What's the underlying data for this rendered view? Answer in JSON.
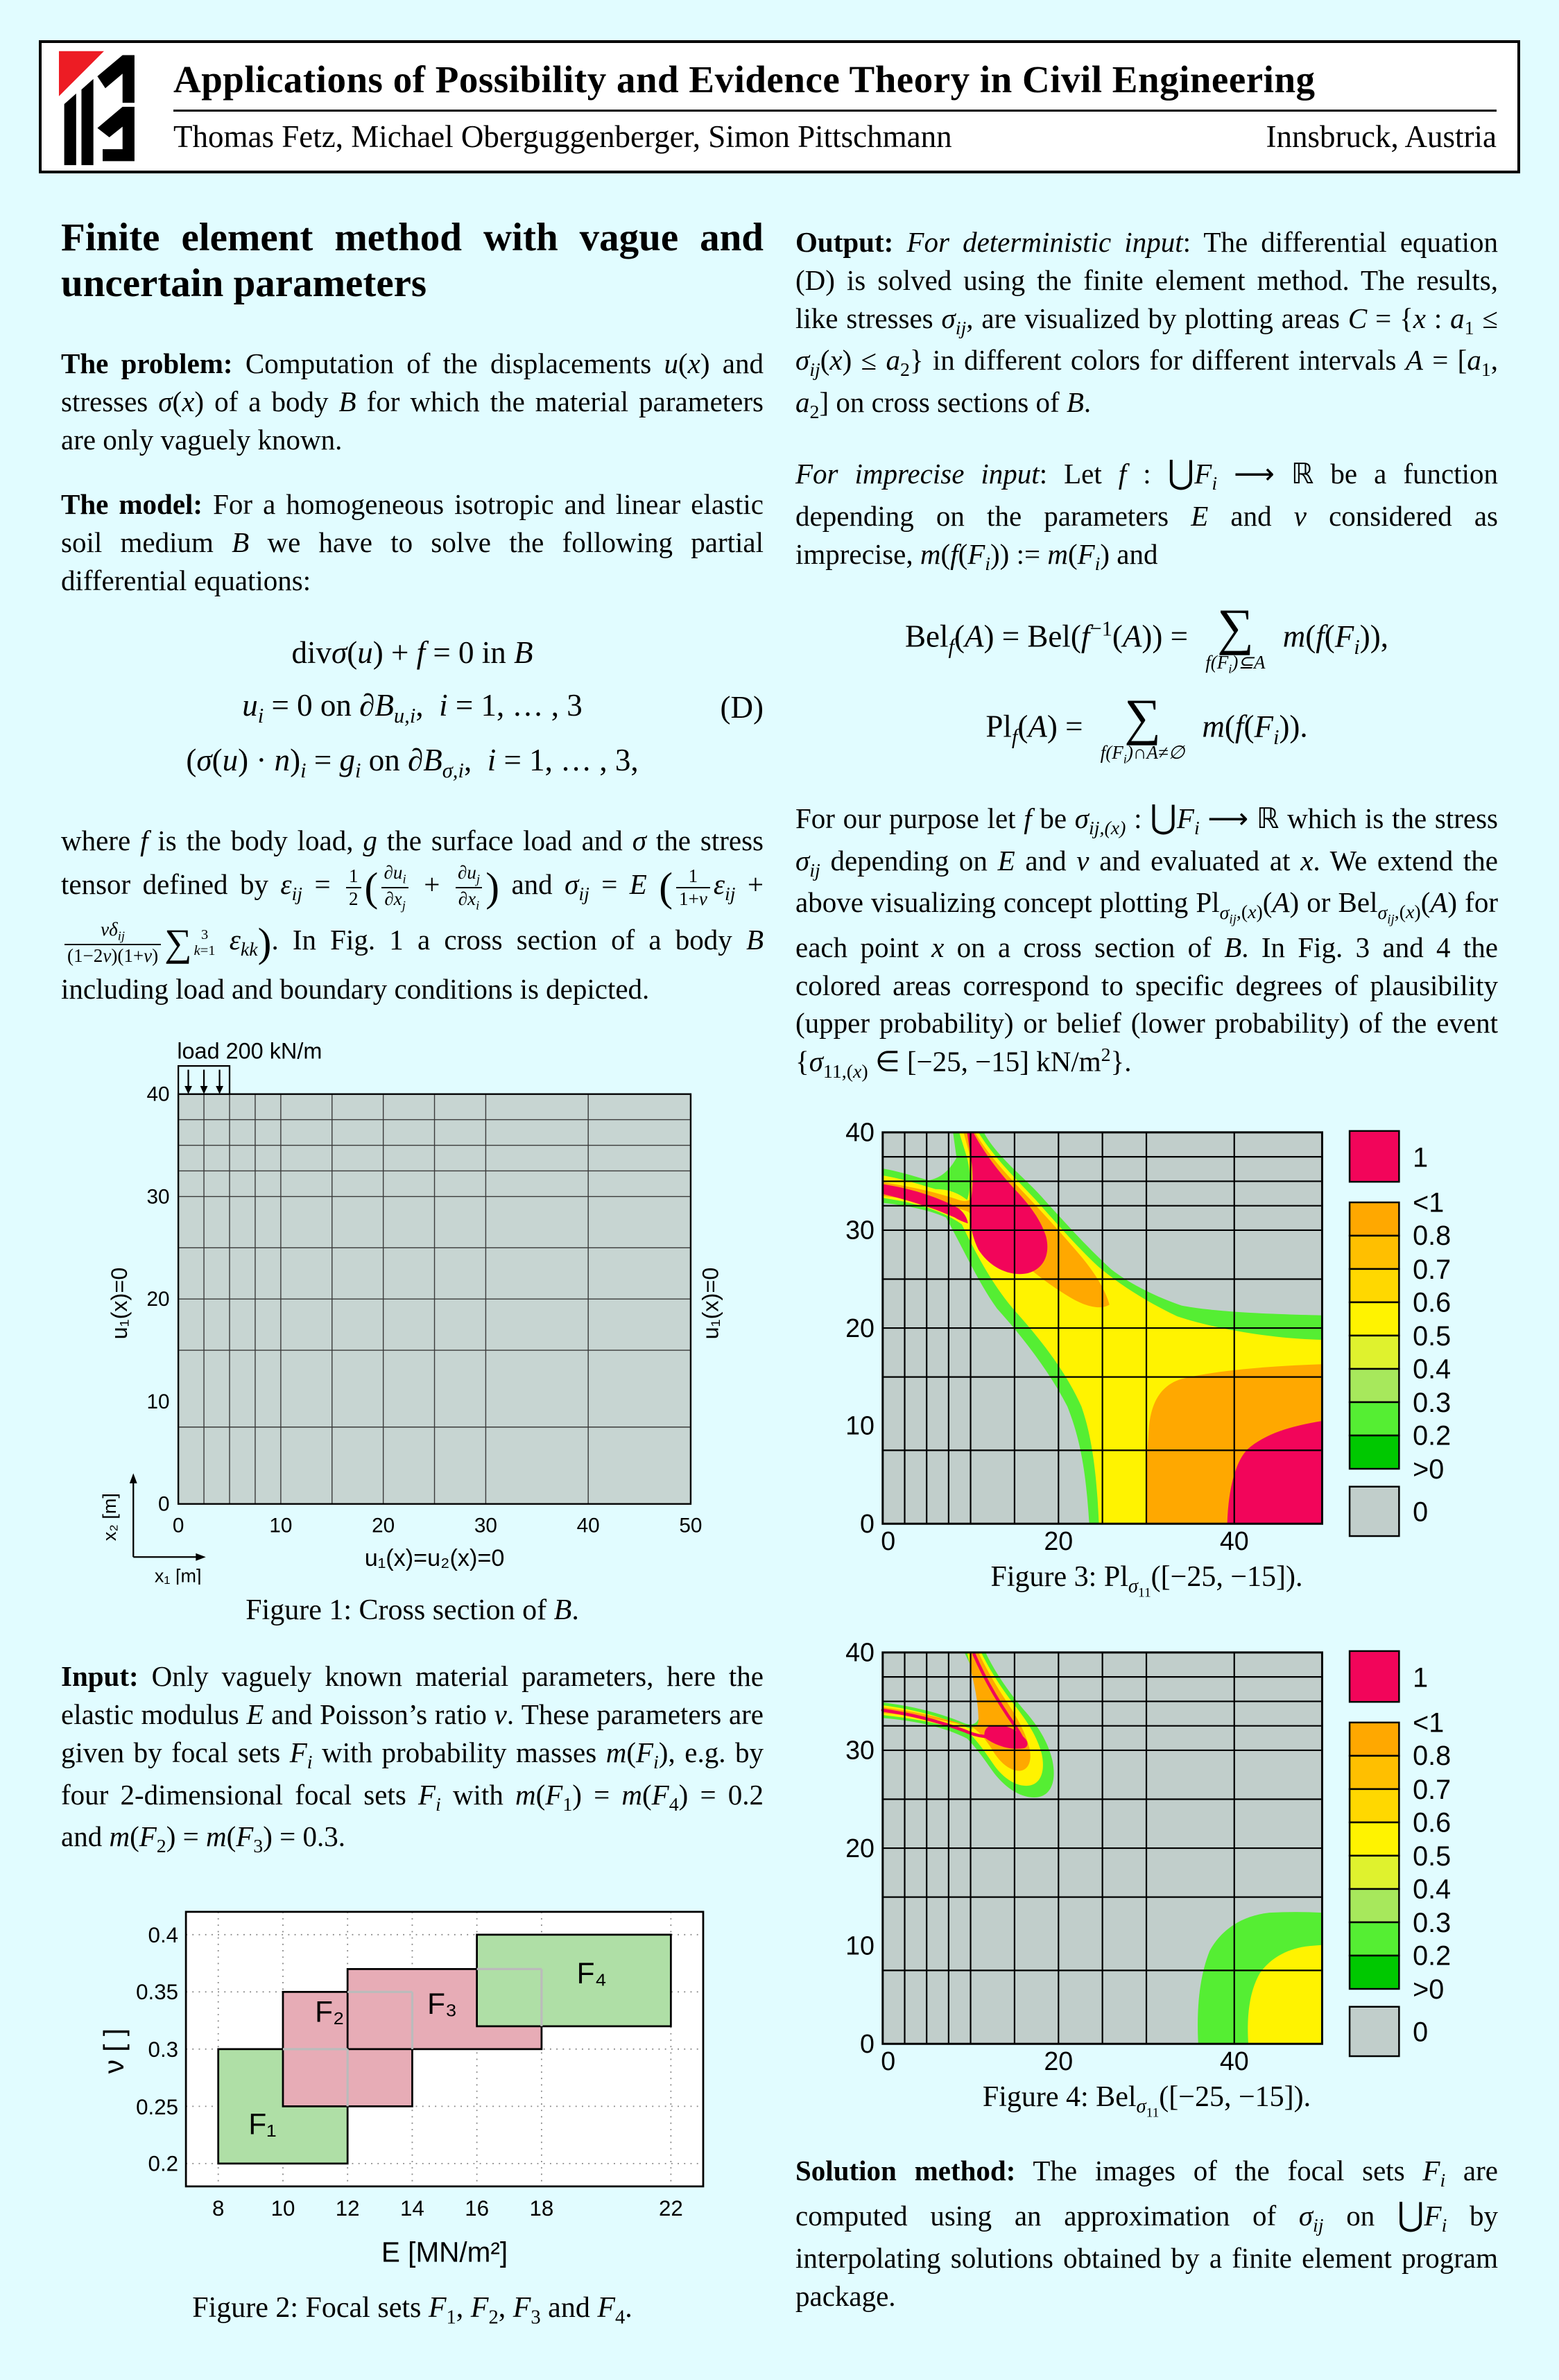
{
  "palette": {
    "background": "#E1FCFF",
    "mesh_fill": "#C7D5D2",
    "zero_gray": "#C1CECB",
    "value1_crimson": "#F2055A",
    "orange": "#FFA800",
    "yellow": "#FFF300",
    "green": "#55EE33",
    "focal_green": "#AFDFA6",
    "focal_pink": "#E7ACB6",
    "logo_red": "#ED1C24"
  },
  "header": {
    "title": "Applications of Possibility and Evidence Theory in Civil Engineering",
    "authors": "Thomas Fetz, Michael Oberguggenberger, Simon Pittschmann",
    "location": "Innsbruck, Austria"
  },
  "left": {
    "heading": "Finite element method with vague and uncertain parameters",
    "problem_html": "<b>The problem:</b> Computation of the displacements <i>u</i>(<i>x</i>) and stresses <i>σ</i>(<i>x</i>) of a body <i>B</i> for which the material parameters are only vaguely known.",
    "model_html": "<b>The model:</b> For a homogeneous isotropic and linear elastic soil medium <i>B</i> we have to solve the following partial differential equations:",
    "eqD": {
      "line1": "div<i>σ</i>(<i>u</i>) + <i>f</i> = 0 in <i>B</i>",
      "line2": "<i>u<sub>i</sub></i> = 0 on <i>∂B<sub>u,i</sub></i>,&ensp;<i>i</i> = 1, … , 3",
      "line3": "(<i>σ</i>(<i>u</i>) · <i>n</i>)<sub><i>i</i></sub> = <i>g<sub>i</sub></i> on <i>∂B<sub>σ,i</sub></i>,&ensp;<i>i</i> = 1, … , 3,",
      "tag": "(D)"
    },
    "where_html": "where <i>f</i> is the body load, <i>g</i> the surface load and <i>σ</i> the stress tensor defined by <i>ε<sub>ij</sub></i> = <span class='frac'><span class='num'>1</span><span class='den'>2</span></span><span class='bp'>(</span><span class='frac'><span class='num'><i>∂u<sub>i</sub></i></span><span class='den'><i>∂x<sub>j</sub></i></span></span> + <span class='frac'><span class='num'><i>∂u<sub>j</sub></i></span><span class='den'><i>∂x<sub>i</sub></i></span></span><span class='bp'>)</span> and <i>σ<sub>ij</sub></i> = <i>E</i> <span class='bp'>(</span><span class='frac'><span class='num'>1</span><span class='den'>1+<i>ν</i></span></span><i>ε<sub>ij</sub></i> + <span class='frac'><span class='num'><i>νδ<sub>ij</sub></i></span><span class='den'>(1−2<i>ν</i>)(1+<i>ν</i>)</span></span><span class='slim'><span class='sym'>∑</span><span class='limcol'><span>3</span><span><i>k</i>=1</span></span></span> <i>ε<sub>kk</sub></i><span class='bp'>)</span>. In Fig. 1 a cross section of a body <i>B</i> including load and boundary conditions is depicted.",
    "input_html": "<b>Input:</b> Only vaguely known material parameters, here the elastic modulus <i>E</i> and Poisson’s ratio <i>ν</i>. These parameters are given by focal sets <i>F<sub>i</sub></i> with probability masses <i>m</i>(<i>F<sub>i</sub></i>), e.g. by four 2-dimensional focal sets <i>F<sub>i</sub></i> with <i>m</i>(<i>F</i><sub>1</sub>) = <i>m</i>(<i>F</i><sub>4</sub>) = 0.2 and <i>m</i>(<i>F</i><sub>2</sub>) = <i>m</i>(<i>F</i><sub>3</sub>) = 0.3.",
    "fig1": {
      "load_label": "load 200 kN/m",
      "left_label": "u₁(x)=0",
      "right_label": "u₁(x)=0",
      "bottom_label": "u₁(x)=u₂(x)=0",
      "x1_label": "x₁ [m]",
      "x2_label": "x₂ [m]",
      "yticks": [
        "40",
        "30",
        "20",
        "10",
        "0"
      ],
      "xticks": [
        "0",
        "10",
        "20",
        "30",
        "40",
        "50"
      ],
      "caption_html": "Figure 1: Cross section of <i>B</i>."
    },
    "fig2": {
      "xlabel": "E [MN/m²]",
      "ylabel": "ν [ ]",
      "yticks": [
        "0.4",
        "0.35",
        "0.3",
        "0.25",
        "0.2"
      ],
      "xticks": [
        "8",
        "10",
        "12",
        "14",
        "16",
        "18",
        "22"
      ],
      "set_labels": [
        "F₁",
        "F₂",
        "F₃",
        "F₄"
      ],
      "caption_html": "Figure 2: Focal sets <i>F</i><sub>1</sub>, <i>F</i><sub>2</sub>, <i>F</i><sub>3</sub> and <i>F</i><sub>4</sub>."
    }
  },
  "right": {
    "output_html": "<b>Output:</b> <i>For deterministic input</i>: The differential equation (D) is solved using the finite element method. The results, like stresses <i>σ<sub>ij</sub></i>, are visualized by plotting areas <i>C</i> = {<i>x</i> : <i>a</i><sub>1</sub> ≤ <i>σ<sub>ij</sub></i>(<i>x</i>) ≤ <i>a</i><sub>2</sub>} in different colors for different intervals <i>A</i> = [<i>a</i><sub>1</sub>, <i>a</i><sub>2</sub>] on cross sections of <i>B</i>.",
    "imprecise_html": "<i>For imprecise input</i>: Let <i>f</i> : <span class='cup'>⋃</span><i>F<sub>i</sub></i> ⟶ ℝ be a function depending on the parameters <i>E</i> and <i>ν</i> considered as imprecise, <i>m</i>(<i>f</i>(<i>F<sub>i</sub></i>)) := <i>m</i>(<i>F<sub>i</sub></i>) and",
    "bel_html": "Bel<sub><i>f</i></sub>(<i>A</i>) = Bel(<i>f</i><sup>−1</sup>(<i>A</i>)) = <span class='bigsum'><span class='sg'>∑</span><span class='below'>f(F<sub>i</sub>)⊆A</span></span> <i>m</i>(<i>f</i>(<i>F<sub>i</sub></i>)),",
    "pl_html": "Pl<sub><i>f</i></sub>(<i>A</i>) = <span class='bigsum'><span class='sg'>∑</span><span class='below'>f(F<sub>i</sub>)∩A≠∅</span></span> <i>m</i>(<i>f</i>(<i>F<sub>i</sub></i>)).",
    "purpose_html": "For our purpose let <i>f</i> be <i>σ<sub>ij,(x)</sub></i> : <span class='cup'>⋃</span><i>F<sub>i</sub></i> ⟶ ℝ which is the stress <i>σ<sub>ij</sub></i> depending on <i>E</i> and <i>ν</i> and evaluated at <i>x</i>. We extend the above visualizing concept plotting Pl<sub><i>σ<sub>ij</sub></i>,(<i>x</i>)</sub>(<i>A</i>) or Bel<sub><i>σ<sub>ij</sub></i>,(<i>x</i>)</sub>(<i>A</i>) for each point <i>x</i> on a cross section of <i>B</i>. In Fig. 3 and 4 the colored areas correspond to specific degrees of plausibility (upper probability) or belief (lower probability) of the event {<i>σ</i><sub>11,(<i>x</i>)</sub> ∈ [−25, −15] kN/m<sup>2</sup>}.",
    "solution_html": "<b>Solution method:</b> The images of the focal sets <i>F<sub>i</sub></i> are computed using an approximation of <i>σ<sub>ij</sub></i> on <span class='cup'>⋃</span><i>F<sub>i</sub></i> by interpolating solutions obtained by a finite element program package.",
    "fig3": {
      "yticks": [
        "40",
        "30",
        "20",
        "10",
        "0"
      ],
      "xticks": [
        "0",
        "20",
        "40"
      ],
      "caption_html": "Figure 3: Pl<sub><i>σ</i><sub>11</sub></sub>([−25, −15])."
    },
    "fig4": {
      "yticks": [
        "40",
        "30",
        "20",
        "10",
        "0"
      ],
      "xticks": [
        "0",
        "20",
        "40"
      ],
      "caption_html": "Figure 4: Bel<sub><i>σ</i><sub>11</sub></sub>([−25, −15])."
    }
  },
  "legend": {
    "labels": [
      "1",
      "<1",
      "0.8",
      "0.7",
      "0.6",
      "0.5",
      "0.4",
      "0.3",
      "0.2",
      ">0",
      "0"
    ]
  },
  "chart_data": [
    {
      "id": "figure1",
      "type": "other",
      "title": "Cross section of B (FE mesh)",
      "xlabel": "x1 [m]",
      "ylabel": "x2 [m]",
      "xlim": [
        0,
        50
      ],
      "ylim": [
        0,
        40
      ],
      "xticks": [
        0,
        10,
        20,
        30,
        40,
        50
      ],
      "yticks": [
        0,
        10,
        20,
        30,
        40
      ],
      "mesh_x_lines": [
        2.5,
        5,
        7.5,
        10,
        15,
        20,
        25,
        30,
        40
      ],
      "mesh_y_lines": [
        7.5,
        15,
        20,
        25,
        30,
        32.5,
        35,
        37.5
      ],
      "annotations": [
        "load 200 kN/m applied over x1 = 0..5 at top edge (3 down arrows)",
        "u1(x)=0 on left boundary",
        "u1(x)=0 on right boundary",
        "u1(x)=u2(x)=0 on bottom boundary"
      ]
    },
    {
      "id": "figure2",
      "type": "other",
      "title": "Focal sets F1, F2, F3, F4",
      "xlabel": "E [MN/m2]",
      "ylabel": "nu [ ]",
      "xticks": [
        8,
        10,
        12,
        14,
        16,
        18,
        22
      ],
      "yticks": [
        0.2,
        0.25,
        0.3,
        0.35,
        0.4
      ],
      "grid": "dotted",
      "rectangles": [
        {
          "name": "F1",
          "E": [
            8,
            12
          ],
          "nu": [
            0.2,
            0.3
          ],
          "color": "green",
          "mass": 0.2
        },
        {
          "name": "F2",
          "E": [
            10,
            14
          ],
          "nu": [
            0.25,
            0.35
          ],
          "color": "pink",
          "mass": 0.3
        },
        {
          "name": "F3",
          "E": [
            12,
            18
          ],
          "nu": [
            0.3,
            0.37
          ],
          "color": "pink",
          "mass": 0.3
        },
        {
          "name": "F4",
          "E": [
            16,
            22
          ],
          "nu": [
            0.32,
            0.4
          ],
          "color": "green",
          "mass": 0.2
        }
      ]
    },
    {
      "id": "figure3",
      "type": "heatmap",
      "title": "Pl_sigma11([-25,-15])",
      "xlim": [
        0,
        50
      ],
      "ylim": [
        0,
        40
      ],
      "xticks": [
        0,
        20,
        40
      ],
      "yticks": [
        0,
        10,
        20,
        30,
        40
      ],
      "legend_levels": [
        "1",
        "<1",
        "0.8",
        "0.7",
        "0.6",
        "0.5",
        "0.4",
        "0.3",
        "0.2",
        ">0",
        "0"
      ],
      "regions": [
        {
          "value": "1",
          "description": "two diagonal bands from top edge (x=10) and left edge (y=34) merging into blob around (10-18, 26-33); also bottom-right corner x>39, y<10"
        },
        {
          "value": "<1 (orange)",
          "description": "halo around blob extending to (26,22); block x>30, y<16 at bottom right"
        },
        {
          "value": "0.5-0.7 (yellow)",
          "description": "swath from blob down to bottom at x=25-30 and to right edge at y=16-19"
        },
        {
          "value": "0.2-0.3 (green)",
          "description": "outer fringe of swath, reaching right edge at y=19-21"
        },
        {
          "value": "0",
          "description": "gray elsewhere"
        }
      ]
    },
    {
      "id": "figure4",
      "type": "heatmap",
      "title": "Bel_sigma11([-25,-15])",
      "xlim": [
        0,
        50
      ],
      "ylim": [
        0,
        40
      ],
      "xticks": [
        0,
        20,
        40
      ],
      "yticks": [
        0,
        10,
        20,
        30,
        40
      ],
      "legend_levels": [
        "1",
        "<1",
        "0.8",
        "0.7",
        "0.6",
        "0.5",
        "0.4",
        "0.3",
        "0.2",
        ">0",
        "0"
      ],
      "regions": [
        {
          "value": "1",
          "description": "small blob near (12-16, 30-32.5) with thin streaks along two arms from top edge (x=10) and left edge (y=34)"
        },
        {
          "value": "<1..0.5 (orange/yellow)",
          "description": "narrow V-shaped bands around the streaks, lobe down to (17,25)"
        },
        {
          "value": "0.2-0.3 (green)",
          "description": "fringe of V; arc at bottom-right from (36,0) to (50,13)"
        },
        {
          "value": "0.5 (yellow)",
          "description": "bottom-right corner region x>41, y<10"
        },
        {
          "value": "0",
          "description": "gray elsewhere"
        }
      ]
    }
  ]
}
